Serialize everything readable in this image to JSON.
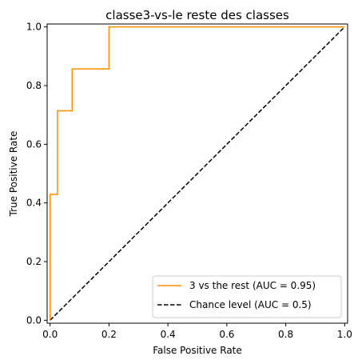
{
  "chart_data": {
    "type": "line",
    "title": "classe3-vs-le reste des classes",
    "xlabel": "False Positive Rate",
    "ylabel": "True Positive Rate",
    "xlim": [
      -0.01,
      1.01
    ],
    "ylim": [
      -0.01,
      1.01
    ],
    "x_ticks": [
      0.0,
      0.2,
      0.4,
      0.6,
      0.8,
      1.0
    ],
    "y_ticks": [
      0.0,
      0.2,
      0.4,
      0.6,
      0.8,
      1.0
    ],
    "x_tick_labels": [
      "0.0",
      "0.2",
      "0.4",
      "0.6",
      "0.8",
      "1.0"
    ],
    "y_tick_labels": [
      "0.0",
      "0.2",
      "0.4",
      "0.6",
      "0.8",
      "1.0"
    ],
    "grid": false,
    "legend_position": "bottom-right",
    "series": [
      {
        "name": "3 vs the rest (AUC = 0.95)",
        "color": "#ff8c00",
        "style": "solid",
        "x": [
          0.0,
          0.0,
          0.0,
          0.025,
          0.025,
          0.075,
          0.075,
          0.2,
          0.2,
          1.0
        ],
        "y": [
          0.0,
          0.143,
          0.429,
          0.429,
          0.714,
          0.714,
          0.857,
          0.857,
          1.0,
          1.0
        ]
      },
      {
        "name": "Chance level (AUC = 0.5)",
        "color": "#000000",
        "style": "dashed",
        "x": [
          0.0,
          1.0
        ],
        "y": [
          0.0,
          1.0
        ]
      }
    ]
  }
}
